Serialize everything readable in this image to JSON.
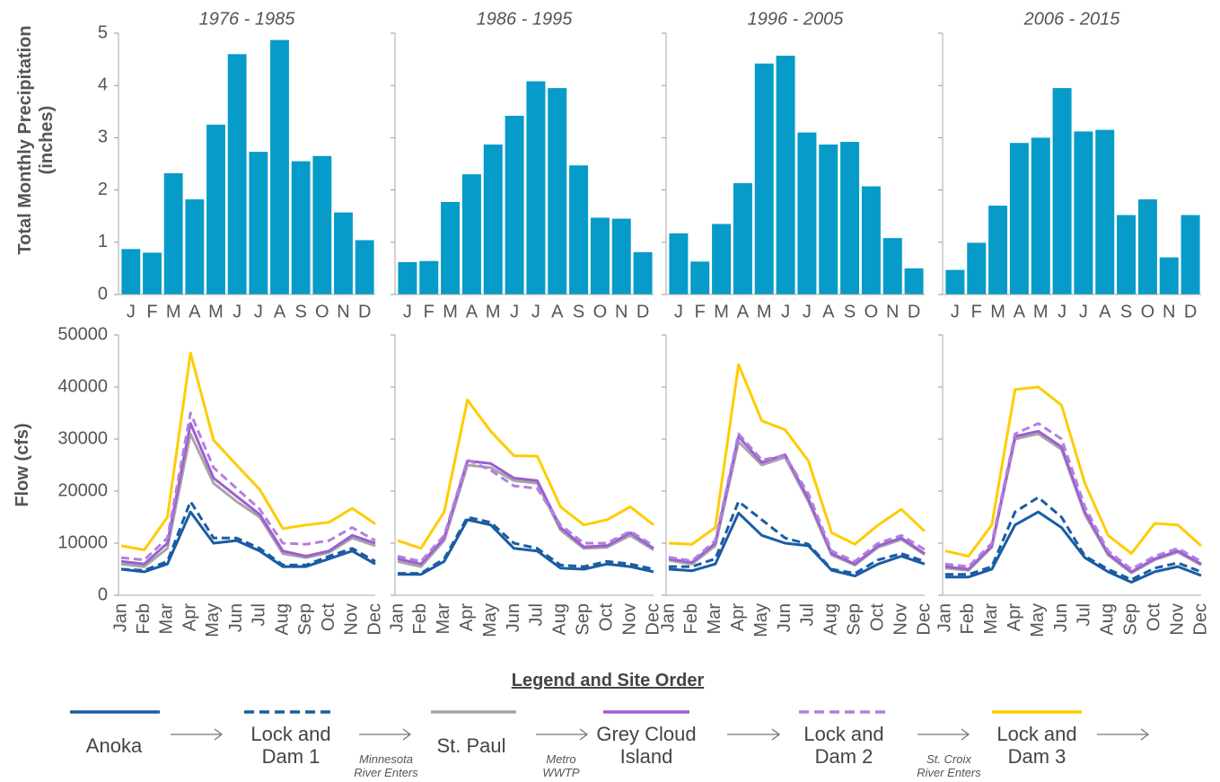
{
  "chart_data": [
    {
      "type": "bar",
      "title": "1976 - 1985",
      "ylabel": "Total Monthly Precipitation (inches)",
      "categories": [
        "J",
        "F",
        "M",
        "A",
        "M",
        "J",
        "J",
        "A",
        "S",
        "O",
        "N",
        "D"
      ],
      "values": [
        0.87,
        0.8,
        2.32,
        1.82,
        3.25,
        4.6,
        2.73,
        4.87,
        2.55,
        2.65,
        1.57,
        1.04
      ],
      "color": "#069bc8",
      "ylim": [
        0,
        5
      ],
      "yticks": [
        0,
        1,
        2,
        3,
        4,
        5
      ]
    },
    {
      "type": "bar",
      "title": "1986 - 1995",
      "categories": [
        "J",
        "F",
        "M",
        "A",
        "M",
        "J",
        "J",
        "A",
        "S",
        "O",
        "N",
        "D"
      ],
      "values": [
        0.62,
        0.64,
        1.77,
        2.3,
        2.87,
        3.42,
        4.08,
        3.95,
        2.47,
        1.47,
        1.45,
        0.81
      ],
      "color": "#069bc8",
      "ylim": [
        0,
        5
      ],
      "yticks": [
        0,
        1,
        2,
        3,
        4,
        5
      ]
    },
    {
      "type": "bar",
      "title": "1996 - 2005",
      "categories": [
        "J",
        "F",
        "M",
        "A",
        "M",
        "J",
        "J",
        "A",
        "S",
        "O",
        "N",
        "D"
      ],
      "values": [
        1.17,
        0.63,
        1.35,
        2.13,
        4.42,
        4.57,
        3.1,
        2.87,
        2.92,
        2.07,
        1.08,
        0.5
      ],
      "color": "#069bc8",
      "ylim": [
        0,
        5
      ],
      "yticks": [
        0,
        1,
        2,
        3,
        4,
        5
      ]
    },
    {
      "type": "bar",
      "title": "2006 - 2015",
      "categories": [
        "J",
        "F",
        "M",
        "A",
        "M",
        "J",
        "J",
        "A",
        "S",
        "O",
        "N",
        "D"
      ],
      "values": [
        0.47,
        0.99,
        1.7,
        2.9,
        3.0,
        3.95,
        3.12,
        3.15,
        1.52,
        1.82,
        0.71,
        1.52
      ],
      "color": "#069bc8",
      "ylim": [
        0,
        5
      ],
      "yticks": [
        0,
        1,
        2,
        3,
        4,
        5
      ]
    },
    {
      "type": "line",
      "ylabel": "Flow (cfs)",
      "categories": [
        "Jan",
        "Feb",
        "Mar",
        "Apr",
        "May",
        "Jun",
        "Jul",
        "Aug",
        "Sep",
        "Oct",
        "Nov",
        "Dec"
      ],
      "ylim": [
        0,
        50000
      ],
      "yticks": [
        0,
        10000,
        20000,
        30000,
        40000,
        50000
      ],
      "series": [
        {
          "name": "Anoka",
          "color": "#1a5ca4",
          "dashed": false,
          "values": [
            5000,
            4500,
            6000,
            16000,
            10000,
            10500,
            8500,
            5500,
            5500,
            7000,
            8500,
            6000
          ]
        },
        {
          "name": "Lock and Dam 1",
          "color": "#1a5ca4",
          "dashed": true,
          "values": [
            5000,
            4800,
            6500,
            18000,
            11000,
            11000,
            9000,
            5800,
            5800,
            7500,
            9000,
            6500
          ]
        },
        {
          "name": "St. Paul",
          "color": "#a6a6a6",
          "dashed": false,
          "values": [
            6000,
            5500,
            9000,
            31000,
            21500,
            18000,
            15000,
            8000,
            7200,
            8200,
            11000,
            9500
          ]
        },
        {
          "name": "Grey Cloud Island",
          "color": "#9b5fd0",
          "dashed": false,
          "values": [
            6500,
            6000,
            10000,
            33000,
            22500,
            19000,
            15500,
            8500,
            7500,
            8500,
            11500,
            10000
          ]
        },
        {
          "name": "Lock and Dam 2",
          "color": "#b27fe2",
          "dashed": true,
          "values": [
            7200,
            6800,
            11000,
            35000,
            24500,
            20500,
            16500,
            10000,
            9800,
            10500,
            13000,
            10500
          ]
        },
        {
          "name": "Lock and Dam 3",
          "color": "#ffcc00",
          "dashed": false,
          "values": [
            9500,
            8700,
            15000,
            46500,
            29800,
            25000,
            20300,
            12800,
            13500,
            14000,
            16700,
            13700
          ]
        }
      ]
    },
    {
      "type": "line",
      "categories": [
        "Jan",
        "Feb",
        "Mar",
        "Apr",
        "May",
        "Jun",
        "Jul",
        "Aug",
        "Sep",
        "Oct",
        "Nov",
        "Dec"
      ],
      "ylim": [
        0,
        50000
      ],
      "yticks": [
        0,
        10000,
        20000,
        30000,
        40000,
        50000
      ],
      "series": [
        {
          "name": "Anoka",
          "color": "#1a5ca4",
          "dashed": false,
          "values": [
            4000,
            4000,
            6500,
            14500,
            13500,
            9000,
            8500,
            5200,
            5000,
            6000,
            5500,
            4500
          ]
        },
        {
          "name": "Lock and Dam 1",
          "color": "#1a5ca4",
          "dashed": true,
          "values": [
            4200,
            4200,
            7000,
            15000,
            14000,
            10000,
            9000,
            5800,
            5500,
            6500,
            6000,
            5000
          ]
        },
        {
          "name": "St. Paul",
          "color": "#a6a6a6",
          "dashed": false,
          "values": [
            6500,
            5500,
            10500,
            25000,
            24500,
            22000,
            21500,
            12500,
            9000,
            9200,
            11500,
            8700
          ]
        },
        {
          "name": "Grey Cloud Island",
          "color": "#9b5fd0",
          "dashed": false,
          "values": [
            7000,
            6000,
            11000,
            25800,
            25300,
            22500,
            22000,
            13000,
            9300,
            9500,
            12000,
            9000
          ]
        },
        {
          "name": "Lock and Dam 2",
          "color": "#b27fe2",
          "dashed": true,
          "values": [
            7500,
            6500,
            11500,
            26000,
            24000,
            21000,
            20500,
            13500,
            10000,
            10000,
            12300,
            9500
          ]
        },
        {
          "name": "Lock and Dam 3",
          "color": "#ffcc00",
          "dashed": false,
          "values": [
            10500,
            9000,
            16000,
            37500,
            31500,
            26800,
            26700,
            17000,
            13500,
            14500,
            17000,
            13500
          ]
        }
      ]
    },
    {
      "type": "line",
      "categories": [
        "Jan",
        "Feb",
        "Mar",
        "Apr",
        "May",
        "Jun",
        "Jul",
        "Aug",
        "Sep",
        "Oct",
        "Nov",
        "Dec"
      ],
      "ylim": [
        0,
        50000
      ],
      "yticks": [
        0,
        10000,
        20000,
        30000,
        40000,
        50000
      ],
      "series": [
        {
          "name": "Anoka",
          "color": "#1a5ca4",
          "dashed": false,
          "values": [
            5000,
            4700,
            6000,
            15800,
            11500,
            10000,
            9500,
            4800,
            3700,
            6000,
            7500,
            6000
          ]
        },
        {
          "name": "Lock and Dam 1",
          "color": "#1a5ca4",
          "dashed": true,
          "values": [
            5500,
            5500,
            7000,
            18000,
            14500,
            11000,
            9800,
            5000,
            4200,
            6800,
            8000,
            6500
          ]
        },
        {
          "name": "St. Paul",
          "color": "#a6a6a6",
          "dashed": false,
          "values": [
            6700,
            6000,
            9500,
            29500,
            25000,
            26500,
            18000,
            7700,
            5800,
            9200,
            10700,
            7800
          ]
        },
        {
          "name": "Grey Cloud Island",
          "color": "#9b5fd0",
          "dashed": false,
          "values": [
            7000,
            6300,
            10000,
            30500,
            25500,
            27000,
            18500,
            8000,
            6000,
            9500,
            11000,
            8000
          ]
        },
        {
          "name": "Lock and Dam 2",
          "color": "#b27fe2",
          "dashed": true,
          "values": [
            7300,
            6600,
            10500,
            31000,
            26000,
            26800,
            19500,
            8500,
            6500,
            10000,
            11500,
            8800
          ]
        },
        {
          "name": "Lock and Dam 3",
          "color": "#ffcc00",
          "dashed": false,
          "values": [
            10000,
            9800,
            13000,
            44300,
            33500,
            31800,
            25800,
            12000,
            9800,
            13500,
            16500,
            12300
          ]
        }
      ]
    },
    {
      "type": "line",
      "categories": [
        "Jan",
        "Feb",
        "Mar",
        "Apr",
        "May",
        "Jun",
        "Jul",
        "Aug",
        "Sep",
        "Oct",
        "Nov",
        "Dec"
      ],
      "ylim": [
        0,
        50000
      ],
      "yticks": [
        0,
        10000,
        20000,
        30000,
        40000,
        50000
      ],
      "series": [
        {
          "name": "Anoka",
          "color": "#1a5ca4",
          "dashed": false,
          "values": [
            3500,
            3500,
            5000,
            13500,
            16000,
            13000,
            7200,
            4500,
            2500,
            4500,
            5500,
            3800
          ]
        },
        {
          "name": "Lock and Dam 1",
          "color": "#1a5ca4",
          "dashed": true,
          "values": [
            4000,
            4000,
            5500,
            16000,
            18800,
            15000,
            7500,
            5000,
            3000,
            5200,
            6200,
            4500
          ]
        },
        {
          "name": "St. Paul",
          "color": "#a6a6a6",
          "dashed": false,
          "values": [
            5200,
            4800,
            9200,
            30000,
            31000,
            28000,
            15500,
            7700,
            4300,
            6800,
            8300,
            5800
          ]
        },
        {
          "name": "Grey Cloud Island",
          "color": "#9b5fd0",
          "dashed": false,
          "values": [
            5500,
            5000,
            9500,
            30500,
            31500,
            28500,
            16000,
            8000,
            4500,
            7000,
            8500,
            6000
          ]
        },
        {
          "name": "Lock and Dam 2",
          "color": "#b27fe2",
          "dashed": true,
          "values": [
            6000,
            5500,
            10000,
            31000,
            33000,
            30000,
            17000,
            8500,
            5000,
            7500,
            9000,
            6500
          ]
        },
        {
          "name": "Lock and Dam 3",
          "color": "#ffcc00",
          "dashed": false,
          "values": [
            8500,
            7500,
            13500,
            39500,
            40000,
            36500,
            21500,
            11500,
            8000,
            13800,
            13500,
            9500
          ]
        }
      ]
    }
  ],
  "legend": {
    "title": "Legend and Site Order",
    "notes": [
      "Minnesota River Enters",
      "Metro WWTP",
      "St. Croix River Enters"
    ]
  }
}
